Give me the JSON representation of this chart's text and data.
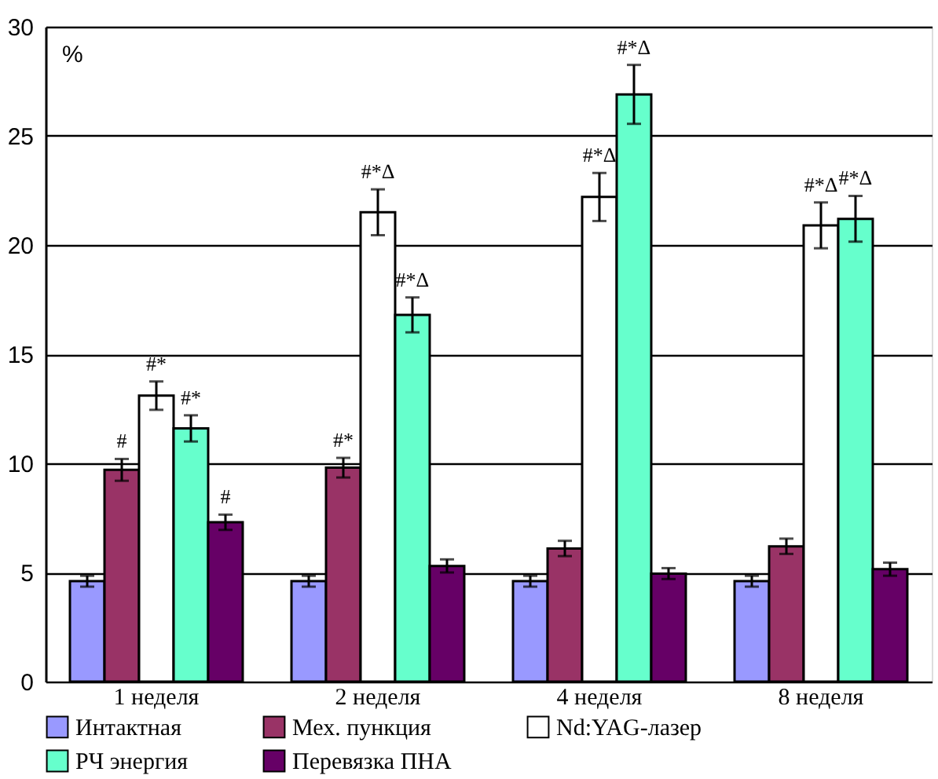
{
  "chart_data": {
    "type": "bar",
    "ylabel": "%",
    "categories": [
      "1 неделя",
      "2 неделя",
      "4 неделя",
      "8 неделя"
    ],
    "series": [
      {
        "name": "Интактная",
        "color": "#9999ff",
        "values": [
          4.6,
          4.6,
          4.6,
          4.6
        ],
        "errors": [
          0.25,
          0.25,
          0.25,
          0.25
        ]
      },
      {
        "name": "Мех. пункция",
        "color": "#993366",
        "values": [
          9.7,
          9.8,
          6.1,
          6.2
        ],
        "errors": [
          0.5,
          0.45,
          0.35,
          0.35
        ],
        "value_labels": [
          "#",
          "#*",
          null,
          null
        ]
      },
      {
        "name": "Nd:YAG-лазер",
        "color": "#ffffff",
        "values": [
          13.1,
          21.5,
          22.2,
          20.9
        ],
        "errors": [
          0.65,
          1.05,
          1.1,
          1.05
        ],
        "value_labels": [
          "#*",
          "#*Δ",
          "#*Δ",
          "#*Δ"
        ]
      },
      {
        "name": "РЧ энергия",
        "color": "#66ffcc",
        "values": [
          11.6,
          16.8,
          26.9,
          21.2
        ],
        "errors": [
          0.6,
          0.8,
          1.35,
          1.05
        ],
        "value_labels": [
          "#*",
          "#*Δ",
          "#*Δ",
          "#*Δ"
        ]
      },
      {
        "name": "Перевязка ПНА",
        "color": "#660066",
        "values": [
          7.3,
          5.3,
          4.95,
          5.15
        ],
        "errors": [
          0.35,
          0.3,
          0.25,
          0.3
        ],
        "value_labels": [
          "#",
          null,
          null,
          null
        ]
      }
    ],
    "ylim": [
      0,
      30
    ],
    "yticks": [
      0,
      5,
      10,
      15,
      20,
      25,
      30
    ],
    "grid": "y",
    "legend": "bottom"
  }
}
